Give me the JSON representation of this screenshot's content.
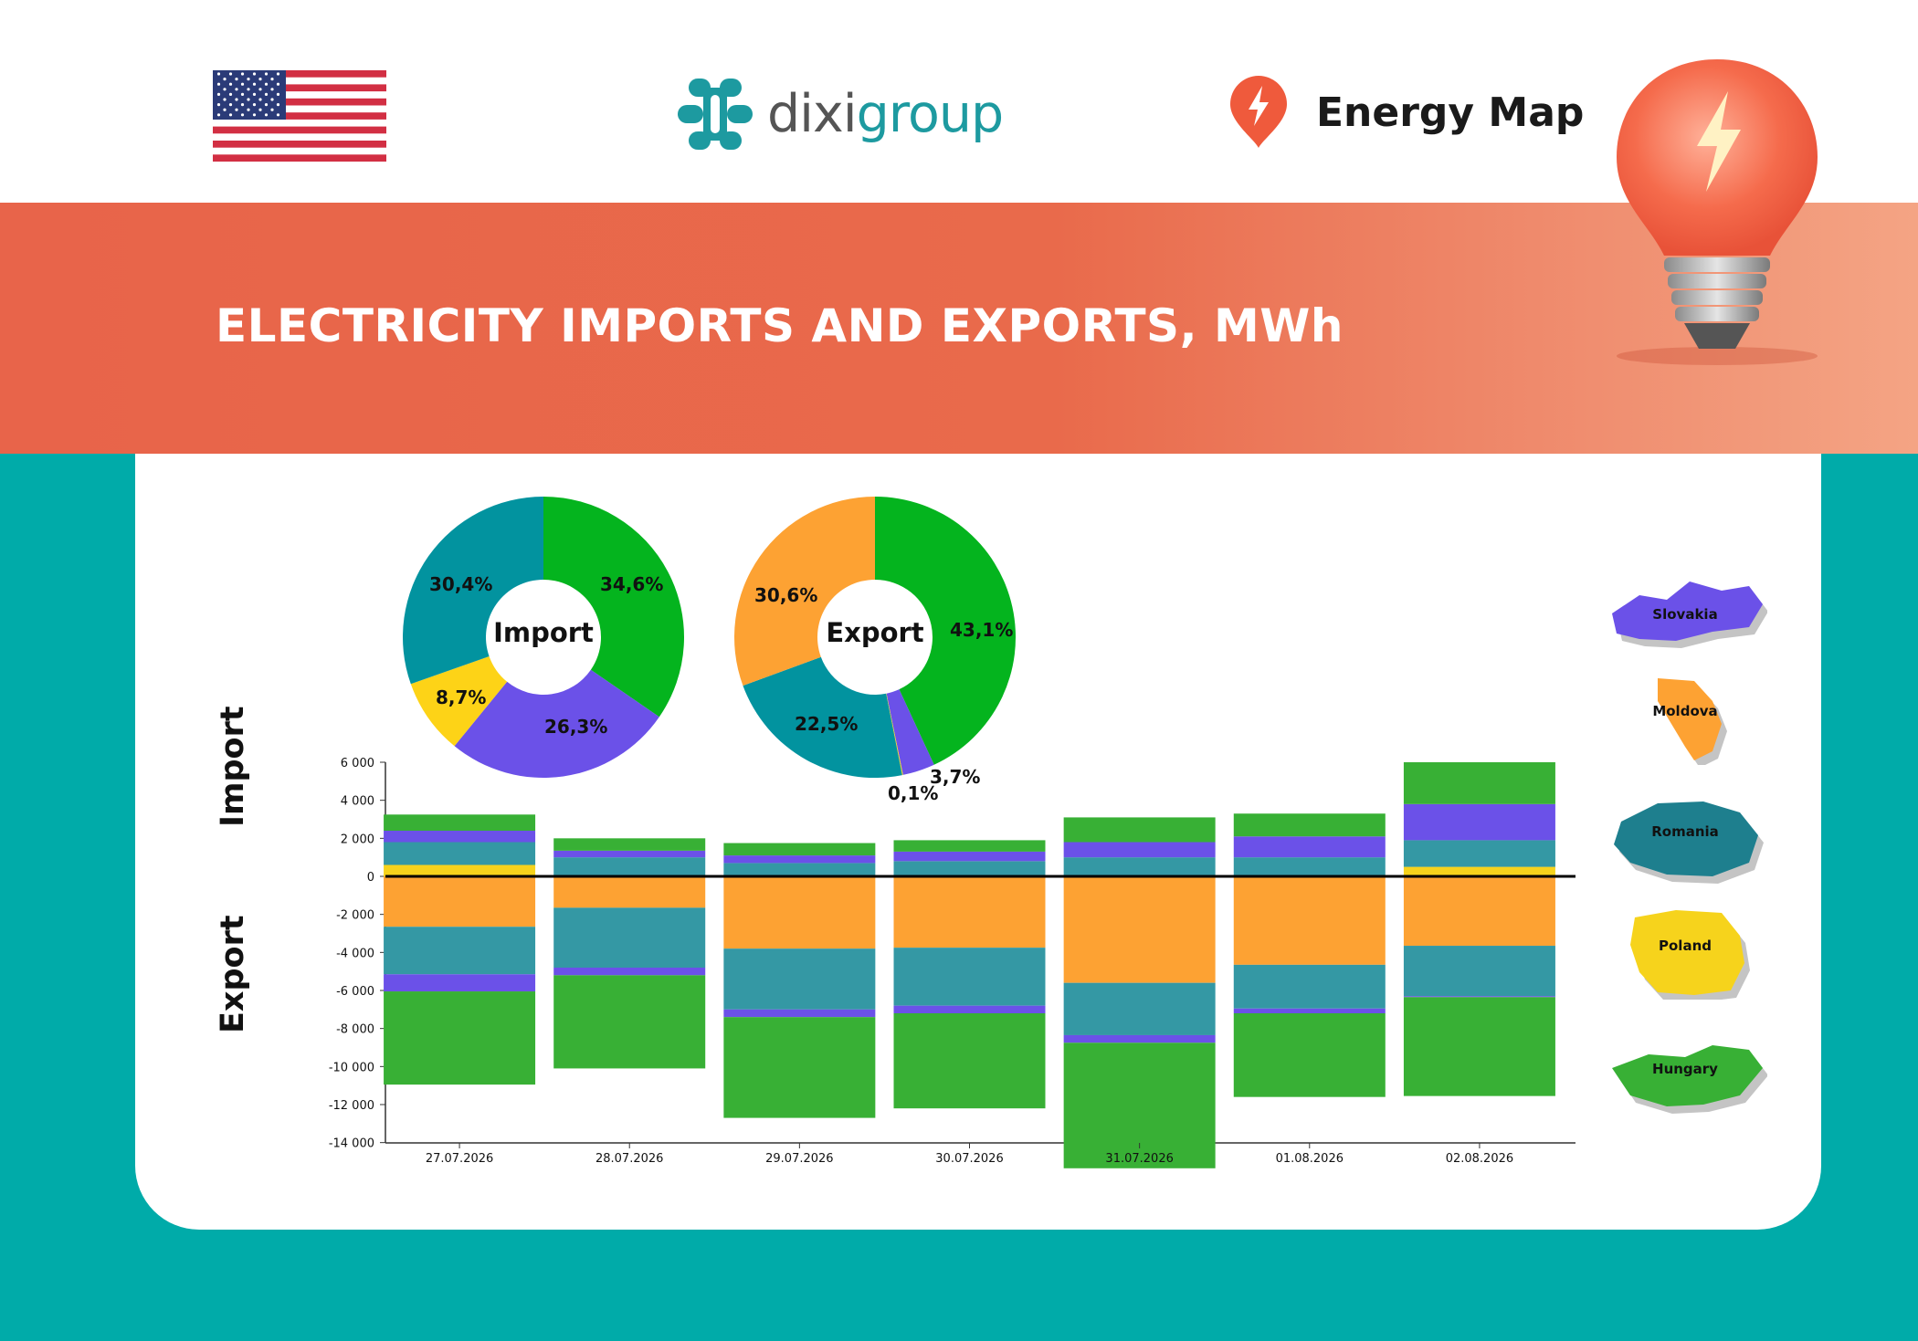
{
  "header": {
    "flag_icon": "us-flag-icon",
    "logo": {
      "text_main": "dixi",
      "text_accent": "group"
    },
    "brand": {
      "label": "Energy Map",
      "icon": "map-pin-lightning-icon"
    }
  },
  "banner": {
    "title": "ELECTRICITY IMPORTS AND EXPORTS, MWh"
  },
  "side_labels": {
    "import": "Import",
    "export": "Export"
  },
  "colors": {
    "Hungary": "#38b035",
    "Slovakia": "#6b51e8",
    "Romania": "#3498a4",
    "Poland": "#f6d31c",
    "Moldova": "#fda233"
  },
  "legend": [
    {
      "name": "Slovakia",
      "color": "#6b51e8"
    },
    {
      "name": "Moldova",
      "color": "#fda233"
    },
    {
      "name": "Romania",
      "color": "#1e7f8e"
    },
    {
      "name": "Poland",
      "color": "#f6d31c"
    },
    {
      "name": "Hungary",
      "color": "#38b035"
    }
  ],
  "chart_data": [
    {
      "type": "pie",
      "title": "Import",
      "slices": [
        {
          "name": "Hungary",
          "value": 34.6,
          "label": "34,6%",
          "color": "#04b41e"
        },
        {
          "name": "Slovakia",
          "value": 26.3,
          "label": "26,3%",
          "color": "#6b51e8"
        },
        {
          "name": "Poland",
          "value": 8.7,
          "label": "8,7%",
          "color": "#fdd317"
        },
        {
          "name": "Romania",
          "value": 30.4,
          "label": "30,4%",
          "color": "#02939f"
        }
      ]
    },
    {
      "type": "pie",
      "title": "Export",
      "slices": [
        {
          "name": "Hungary",
          "value": 43.1,
          "label": "43,1%",
          "color": "#04b41e"
        },
        {
          "name": "Slovakia",
          "value": 3.7,
          "label": "3,7%",
          "color": "#6b51e8"
        },
        {
          "name": "Poland",
          "value": 0.1,
          "label": "0,1%",
          "color": "#fdd317"
        },
        {
          "name": "Romania",
          "value": 22.5,
          "label": "22,5%",
          "color": "#02939f"
        },
        {
          "name": "Moldova",
          "value": 30.6,
          "label": "30,6%",
          "color": "#fda233"
        }
      ]
    },
    {
      "type": "bar",
      "stacked": true,
      "categories": [
        "27.07.2026",
        "28.07.2026",
        "29.07.2026",
        "30.07.2026",
        "31.07.2026",
        "01.08.2026",
        "02.08.2026"
      ],
      "ylim": [
        -15000,
        6000
      ],
      "yticks": [
        6000,
        4000,
        2000,
        0,
        -2000,
        -4000,
        -6000,
        -8000,
        -10000,
        -12000,
        -14000
      ],
      "ytick_labels": [
        "6 000",
        "4 000",
        "2 000",
        "0",
        "-2 000",
        "-4 000",
        "-6 000",
        "-8 000",
        "-10 000",
        "-12 000",
        "-14 000"
      ],
      "positive_order": [
        "Poland",
        "Romania",
        "Slovakia",
        "Hungary"
      ],
      "negative_order": [
        "Moldova",
        "Romania",
        "Slovakia",
        "Hungary"
      ],
      "series": [
        {
          "name": "Poland",
          "values": [
            600,
            0,
            0,
            0,
            0,
            0,
            500
          ]
        },
        {
          "name": "Romania",
          "values": [
            1200,
            1000,
            700,
            800,
            1000,
            1000,
            1400
          ]
        },
        {
          "name": "Slovakia",
          "values": [
            600,
            350,
            400,
            500,
            800,
            1100,
            1900
          ]
        },
        {
          "name": "Hungary",
          "values": [
            850,
            650,
            650,
            600,
            1300,
            1200,
            2200
          ]
        },
        {
          "name": "Moldova",
          "values": [
            -2650,
            -1650,
            -3800,
            -3750,
            -5600,
            -4650,
            -3650
          ]
        },
        {
          "name": "Romania",
          "values": [
            -2500,
            -3150,
            -3200,
            -3050,
            -2750,
            -2300,
            -2650
          ]
        },
        {
          "name": "Slovakia",
          "values": [
            -900,
            -400,
            -400,
            -400,
            -400,
            -250,
            -50
          ]
        },
        {
          "name": "Hungary",
          "values": [
            -4900,
            -4900,
            -5300,
            -5000,
            -6600,
            -4400,
            -5200
          ]
        }
      ]
    }
  ]
}
